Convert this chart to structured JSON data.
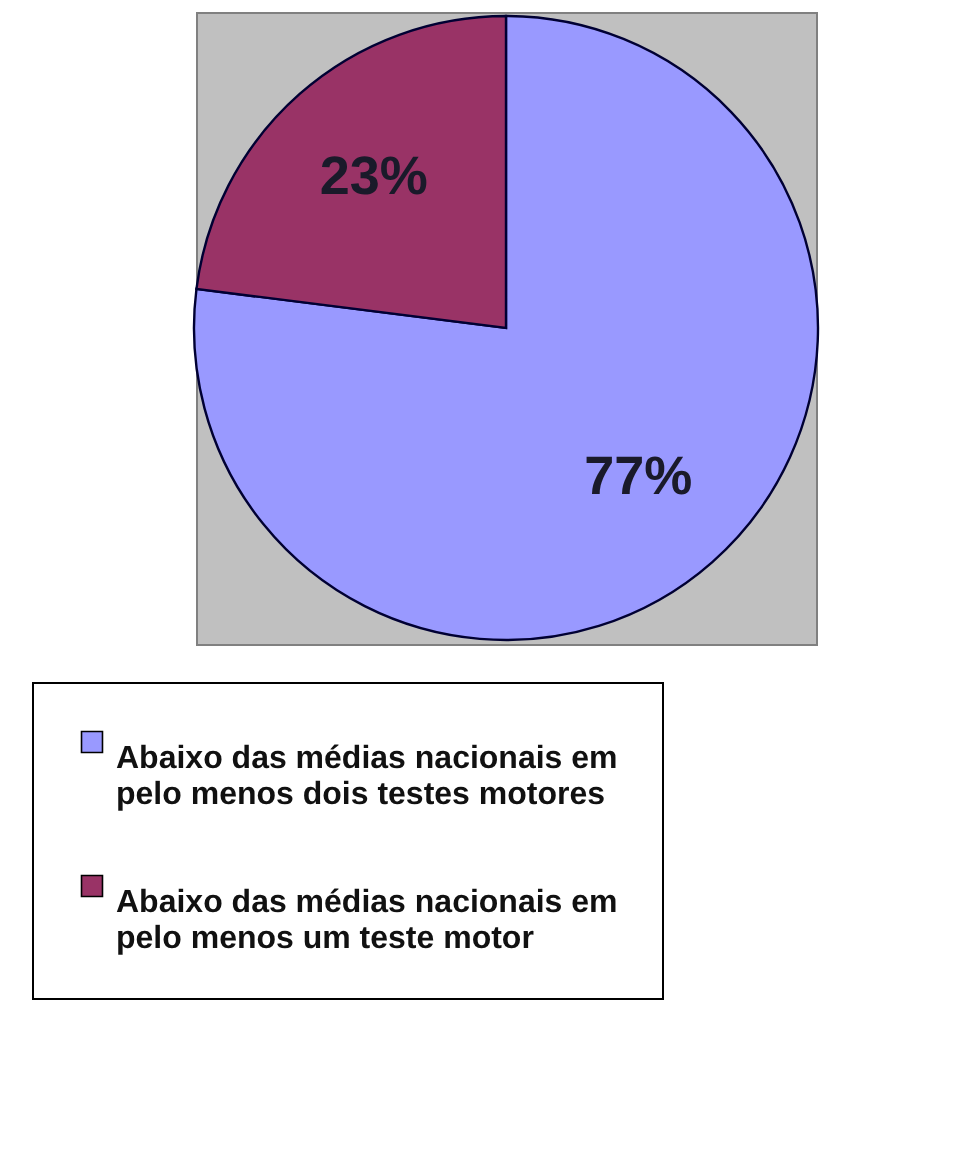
{
  "chart_data": {
    "type": "pie",
    "categories": [
      "Abaixo das médias nacionais em pelo menos dois testes motores",
      "Abaixo das médias nacionais em pelo menos um teste motor"
    ],
    "values": [
      77,
      23
    ],
    "colors": [
      "#9999ff",
      "#993366"
    ],
    "value_labels": [
      "77%",
      "23%"
    ],
    "legend": "bottom"
  }
}
